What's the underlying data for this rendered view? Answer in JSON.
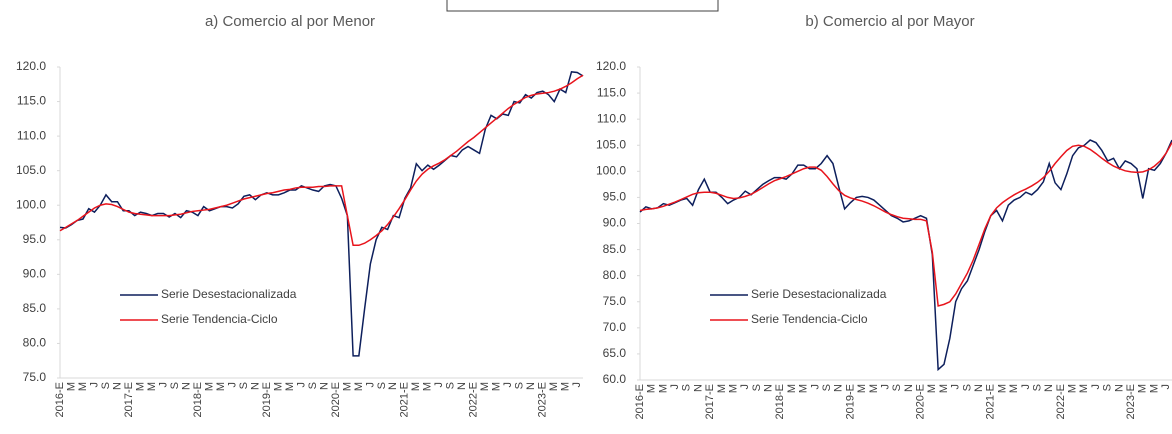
{
  "chart_data": [
    {
      "type": "line",
      "title": "a) Comercio al por Menor",
      "categories": [
        "2016-E",
        null,
        "M",
        null,
        "M",
        null,
        "J",
        null,
        "S",
        null,
        "N",
        null,
        "2017-E",
        null,
        "M",
        null,
        "M",
        null,
        "J",
        null,
        "S",
        null,
        "N",
        null,
        "2018-E",
        null,
        "M",
        null,
        "M",
        null,
        "J",
        null,
        "S",
        null,
        "N",
        null,
        "2019-E",
        null,
        "M",
        null,
        "M",
        null,
        "J",
        null,
        "S",
        null,
        "N",
        null,
        "2020-E",
        null,
        "M",
        null,
        "M",
        null,
        "J",
        null,
        "S",
        null,
        "N",
        null,
        "2021-E",
        null,
        "M",
        null,
        "M",
        null,
        "J",
        null,
        "S",
        null,
        "N",
        null,
        "2022-E",
        null,
        "M",
        null,
        "M",
        null,
        "J",
        null,
        "S",
        null,
        "N",
        null,
        "2023-E",
        null,
        "M",
        null,
        "M",
        null,
        "J",
        null
      ],
      "series": [
        {
          "name": "Serie Desestacionalizada",
          "color": "#0d1f5c",
          "values": [
            96.8,
            96.7,
            97.2,
            97.8,
            98.0,
            99.5,
            99.0,
            100.0,
            101.5,
            100.5,
            100.5,
            99.2,
            99.2,
            98.5,
            99.0,
            98.8,
            98.5,
            98.8,
            98.8,
            98.3,
            98.8,
            98.2,
            99.2,
            99.0,
            98.5,
            99.8,
            99.2,
            99.5,
            99.8,
            99.8,
            99.6,
            100.2,
            101.3,
            101.5,
            100.8,
            101.5,
            101.8,
            101.5,
            101.5,
            101.8,
            102.2,
            102.2,
            102.8,
            102.5,
            102.2,
            102.0,
            102.8,
            103.0,
            102.8,
            101.0,
            98.5,
            78.2,
            78.2,
            85.0,
            91.5,
            95.0,
            96.8,
            96.5,
            98.5,
            98.2,
            101.0,
            102.5,
            106.0,
            105.0,
            105.8,
            105.2,
            105.8,
            106.5,
            107.2,
            107.0,
            108.0,
            108.5,
            108.0,
            107.5,
            111.0,
            113.0,
            112.5,
            113.2,
            113.0,
            115.0,
            114.8,
            116.0,
            115.5,
            116.3,
            116.5,
            116.0,
            115.0,
            116.8,
            116.3,
            119.3,
            119.2,
            118.7
          ]
        },
        {
          "name": "Serie Tendencia-Ciclo",
          "color": "#e8141c",
          "values": [
            96.3,
            96.8,
            97.3,
            97.8,
            98.4,
            99.0,
            99.6,
            100.0,
            100.2,
            100.1,
            99.8,
            99.4,
            99.0,
            98.8,
            98.7,
            98.6,
            98.5,
            98.5,
            98.5,
            98.5,
            98.6,
            98.7,
            98.9,
            99.1,
            99.2,
            99.3,
            99.4,
            99.6,
            99.8,
            100.0,
            100.3,
            100.6,
            100.9,
            101.1,
            101.3,
            101.5,
            101.7,
            101.8,
            102.0,
            102.2,
            102.3,
            102.5,
            102.6,
            102.6,
            102.6,
            102.7,
            102.7,
            102.8,
            102.8,
            102.8,
            98.5,
            94.2,
            94.2,
            94.5,
            95.0,
            95.6,
            96.3,
            97.2,
            98.3,
            99.5,
            100.8,
            102.2,
            103.5,
            104.5,
            105.2,
            105.7,
            106.1,
            106.6,
            107.2,
            107.8,
            108.5,
            109.2,
            109.8,
            110.5,
            111.2,
            111.9,
            112.6,
            113.3,
            114.0,
            114.6,
            115.1,
            115.6,
            115.9,
            116.1,
            116.2,
            116.3,
            116.5,
            116.8,
            117.2,
            117.7,
            118.3,
            118.8
          ]
        }
      ],
      "ylim": [
        75,
        120
      ],
      "yticks": [
        {
          "value": 75,
          "label": "75.0"
        },
        {
          "value": 80,
          "label": "80.0"
        },
        {
          "value": 85,
          "label": "85.0"
        },
        {
          "value": 90,
          "label": "90.0"
        },
        {
          "value": 95,
          "label": "95.0"
        },
        {
          "value": 100,
          "label": "100.0"
        },
        {
          "value": 105,
          "label": "105.0"
        },
        {
          "value": 110,
          "label": "110.0"
        },
        {
          "value": 115,
          "label": "115.0"
        },
        {
          "value": 120,
          "label": "120.0"
        }
      ],
      "grid": false,
      "legend": "lower left"
    },
    {
      "type": "line",
      "title": "b) Comercio al por Mayor",
      "categories": [
        "2016-E",
        null,
        "M",
        null,
        "M",
        null,
        "J",
        null,
        "S",
        null,
        "N",
        null,
        "2017-E",
        null,
        "M",
        null,
        "M",
        null,
        "J",
        null,
        "S",
        null,
        "N",
        null,
        "2018-E",
        null,
        "M",
        null,
        "M",
        null,
        "J",
        null,
        "S",
        null,
        "N",
        null,
        "2019-E",
        null,
        "M",
        null,
        "M",
        null,
        "J",
        null,
        "S",
        null,
        "N",
        null,
        "2020-E",
        null,
        "M",
        null,
        "M",
        null,
        "J",
        null,
        "S",
        null,
        "N",
        null,
        "2021-E",
        null,
        "M",
        null,
        "M",
        null,
        "J",
        null,
        "S",
        null,
        "N",
        null,
        "2022-E",
        null,
        "M",
        null,
        "M",
        null,
        "J",
        null,
        "S",
        null,
        "N",
        null,
        "2023-E",
        null,
        "M",
        null,
        "M",
        null,
        "J",
        null
      ],
      "series": [
        {
          "name": "Serie Desestacionalizada",
          "color": "#0d1f5c",
          "values": [
            92.2,
            93.2,
            92.8,
            93.0,
            93.8,
            93.5,
            94.0,
            94.5,
            94.8,
            93.5,
            96.5,
            98.5,
            96.0,
            96.0,
            95.0,
            93.8,
            94.5,
            95.0,
            96.2,
            95.5,
            96.5,
            97.5,
            98.2,
            98.8,
            98.8,
            98.5,
            99.5,
            101.2,
            101.2,
            100.5,
            100.5,
            101.5,
            103.0,
            101.5,
            97.0,
            92.8,
            94.0,
            95.0,
            95.2,
            95.0,
            94.5,
            93.5,
            92.5,
            91.5,
            91.0,
            90.3,
            90.5,
            91.0,
            91.5,
            91.0,
            84.0,
            62.0,
            63.0,
            68.0,
            75.0,
            77.5,
            79.0,
            82.0,
            85.0,
            88.5,
            91.5,
            92.5,
            90.5,
            93.5,
            94.5,
            95.0,
            96.0,
            95.5,
            96.5,
            98.0,
            101.5,
            97.8,
            96.5,
            99.5,
            103.0,
            104.5,
            105.0,
            106.0,
            105.5,
            104.0,
            102.0,
            102.5,
            100.5,
            102.0,
            101.5,
            100.5,
            94.8,
            100.5,
            100.2,
            101.5,
            103.5,
            106.0
          ]
        },
        {
          "name": "Serie Tendencia-Ciclo",
          "color": "#e8141c",
          "values": [
            92.5,
            92.7,
            92.8,
            93.0,
            93.3,
            93.7,
            94.1,
            94.6,
            95.1,
            95.6,
            95.9,
            96.0,
            96.0,
            95.8,
            95.4,
            95.0,
            94.8,
            94.9,
            95.2,
            95.6,
            96.2,
            96.9,
            97.6,
            98.2,
            98.6,
            99.0,
            99.5,
            100.0,
            100.5,
            100.8,
            100.8,
            100.2,
            99.0,
            97.6,
            96.3,
            95.4,
            94.9,
            94.6,
            94.3,
            93.9,
            93.4,
            92.8,
            92.2,
            91.7,
            91.3,
            91.0,
            90.9,
            90.8,
            90.8,
            90.5,
            84.5,
            74.2,
            74.5,
            75.0,
            76.5,
            78.5,
            80.5,
            83.0,
            86.0,
            89.0,
            91.5,
            93.0,
            94.0,
            94.8,
            95.5,
            96.1,
            96.6,
            97.2,
            97.9,
            98.8,
            100.0,
            101.5,
            102.8,
            104.0,
            104.8,
            105.0,
            104.8,
            104.2,
            103.4,
            102.5,
            101.7,
            101.0,
            100.5,
            100.1,
            99.9,
            99.8,
            99.9,
            100.3,
            101.0,
            102.0,
            103.5,
            105.5
          ]
        }
      ],
      "ylim": [
        60,
        120
      ],
      "yticks": [
        {
          "value": 60,
          "label": "60.0"
        },
        {
          "value": 65,
          "label": "65.0"
        },
        {
          "value": 70,
          "label": "70.0"
        },
        {
          "value": 75,
          "label": "75.0"
        },
        {
          "value": 80,
          "label": "80.0"
        },
        {
          "value": 85,
          "label": "85.0"
        },
        {
          "value": 90,
          "label": "90.0"
        },
        {
          "value": 95,
          "label": "95.0"
        },
        {
          "value": 100,
          "label": "100.0"
        },
        {
          "value": 105,
          "label": "105.0"
        },
        {
          "value": 110,
          "label": "110.0"
        },
        {
          "value": 115,
          "label": "115.0"
        },
        {
          "value": 120,
          "label": "120.0"
        }
      ],
      "grid": false,
      "legend": "lower left"
    }
  ]
}
